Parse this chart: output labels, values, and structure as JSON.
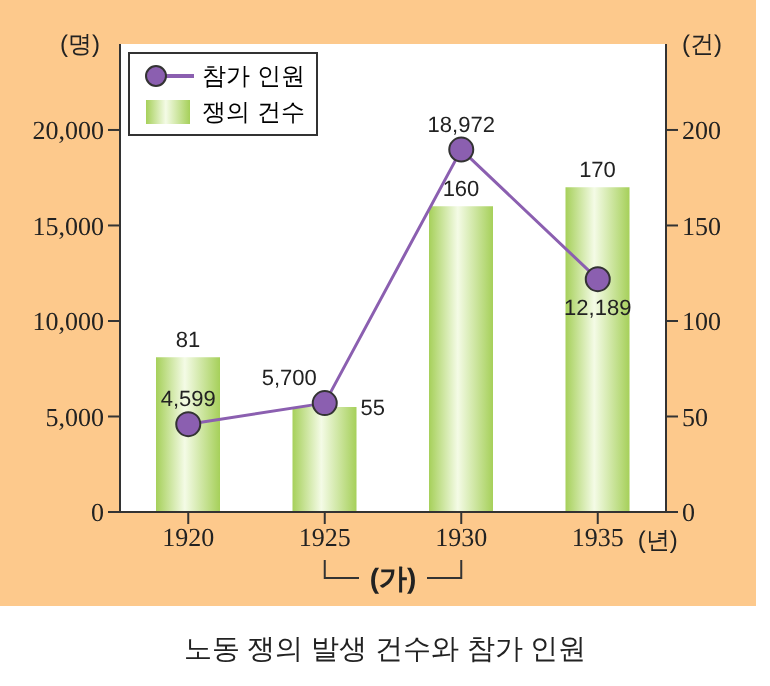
{
  "chart_data": {
    "type": "bar",
    "title": "노동 쟁의 발생 건수와 참가 인원",
    "xlabel": "(년)",
    "ylabel": "(명)",
    "y2label": "(건)",
    "categories": [
      "1920",
      "1925",
      "1930",
      "1935"
    ],
    "series": [
      {
        "name": "참가 인원",
        "type": "line",
        "color": "#8b5fb0",
        "values": [
          4599,
          5700,
          18972,
          12189
        ],
        "value_labels": [
          "4,599",
          "5,700",
          "18,972",
          "12,189"
        ],
        "marker": "circle"
      },
      {
        "name": "쟁의 건수",
        "axis": "y2",
        "color": "#a6d05a",
        "values": [
          81,
          55,
          160,
          170
        ]
      }
    ],
    "ylim": [
      0,
      24500
    ],
    "yticks": [
      0,
      {
        "value": 5000,
        "label": "5,000"
      },
      {
        "value": 10000,
        "label": "10,000"
      },
      {
        "value": 15000,
        "label": "15,000"
      },
      {
        "value": 20000,
        "label": "20,000"
      }
    ],
    "y2lim": [
      0,
      245
    ],
    "y2ticks": [
      0,
      50,
      100,
      150,
      200
    ],
    "data_labels": true,
    "legend": "top left",
    "annotations": [
      "(가)"
    ]
  }
}
